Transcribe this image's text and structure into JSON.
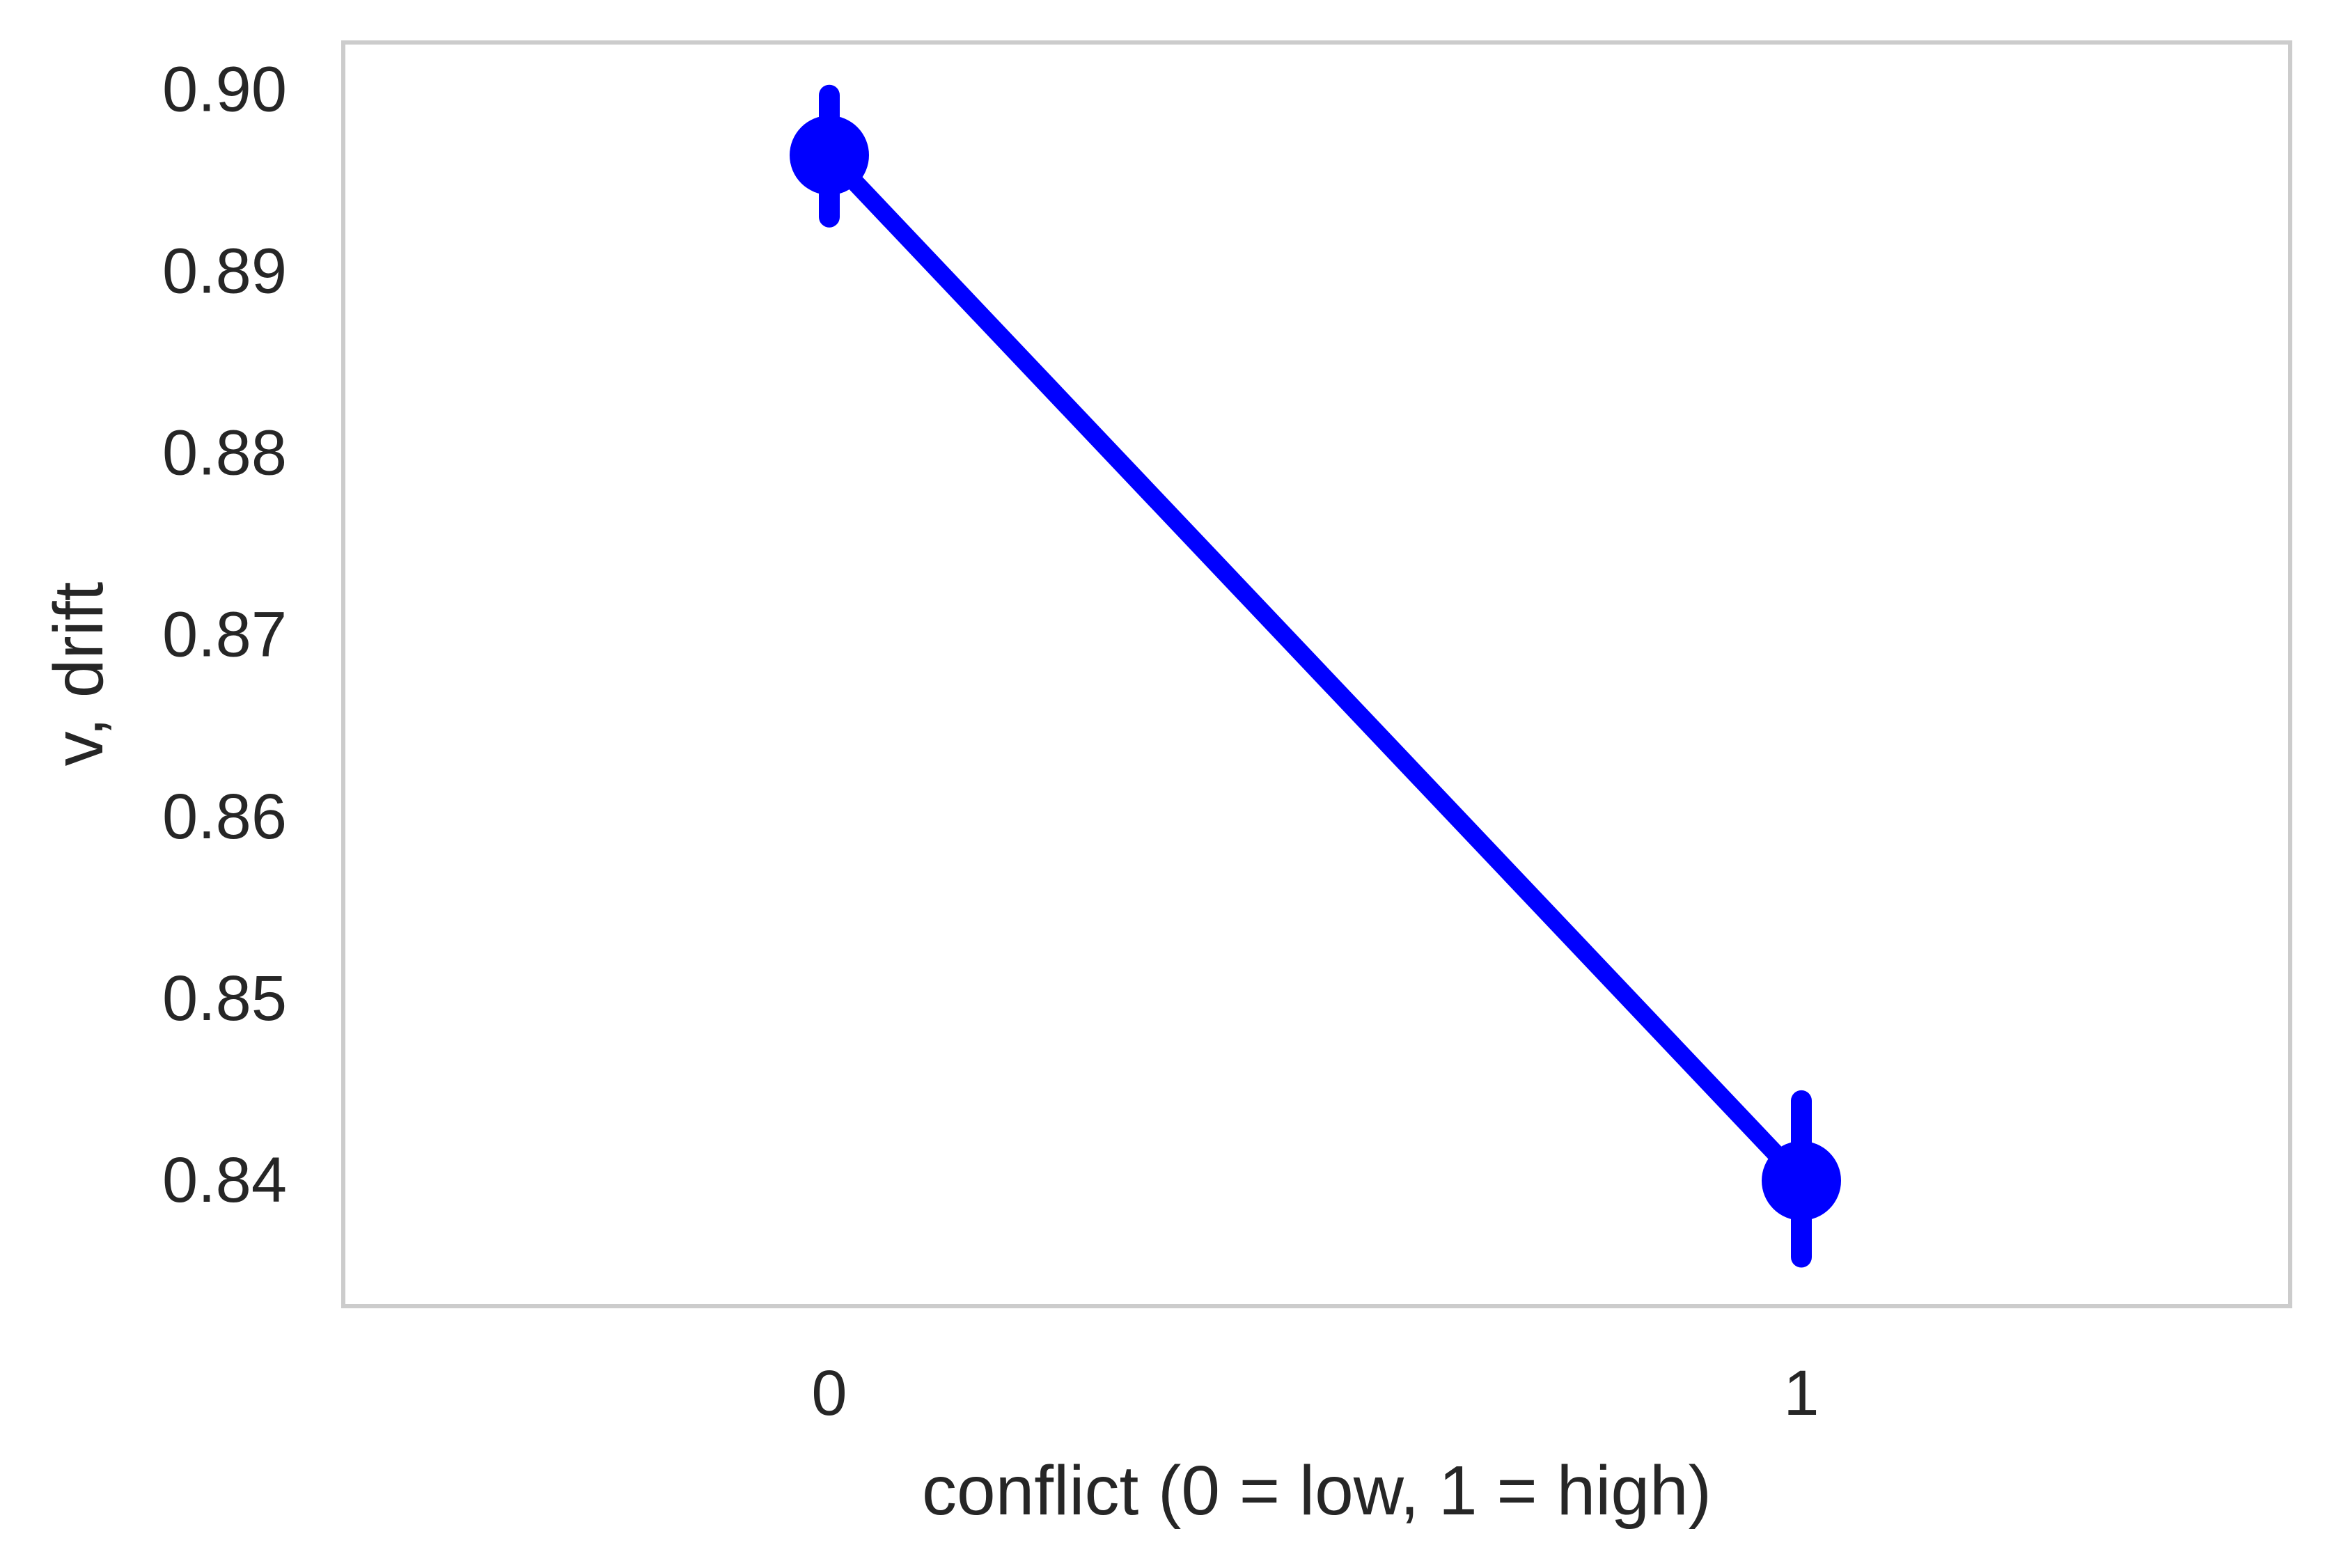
{
  "chart_data": {
    "type": "line",
    "title": "",
    "xlabel": "conflict (0 = low, 1 = high)",
    "ylabel": "v, drift",
    "categories": [
      "0",
      "1"
    ],
    "x": [
      0,
      1
    ],
    "series": [
      {
        "values": [
          0.8963,
          0.8399
        ],
        "error_low": [
          0.8929,
          0.8357
        ],
        "error_high": [
          0.8996,
          0.8443
        ],
        "color": "#0000ff"
      }
    ],
    "ylim": [
      0.833,
      0.9025
    ],
    "yticks": [
      0.84,
      0.85,
      0.86,
      0.87,
      0.88,
      0.89,
      0.9
    ],
    "ytick_labels": [
      "0.84",
      "0.85",
      "0.86",
      "0.87",
      "0.88",
      "0.89",
      "0.90"
    ],
    "xtick_labels": [
      "0",
      "1"
    ],
    "grid": false,
    "legend": "none",
    "frame_color": "#cccccc"
  }
}
